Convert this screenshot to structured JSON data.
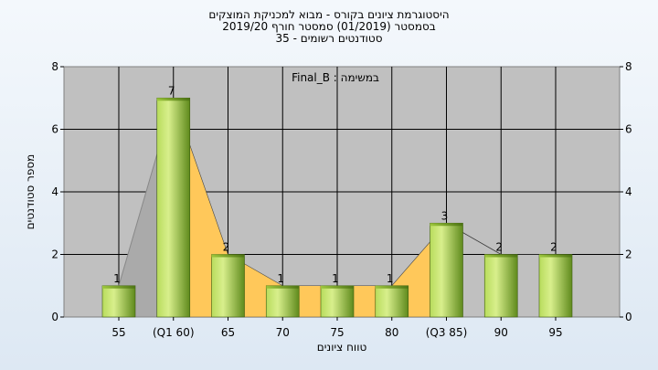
{
  "chart_data": {
    "type": "bar",
    "title_lines": [
      "היסטוגרמת ציונים בקורס - מבוא למכניקת המוצקים",
      "בסמסטר  (01/2019)  סמסטר חורף 2019/20",
      "סטודנטים רשומים - 35"
    ],
    "annotation": "במשימה : Final_B",
    "xlabel": "טווח ציונים",
    "ylabel": "מספר סטודנטים",
    "categories": [
      "55",
      "(Q1 60)",
      "65",
      "70",
      "75",
      "80",
      "(Q3 85)",
      "90",
      "95"
    ],
    "values": [
      1,
      7,
      2,
      1,
      1,
      1,
      3,
      2,
      2
    ],
    "ylim": [
      0,
      8
    ],
    "yticks": [
      0,
      2,
      4,
      6,
      8
    ],
    "grid": true,
    "colors": {
      "plot_bg": "#c0c0c0",
      "bar_light": "#d8ef8c",
      "bar_dark": "#5f8a1c",
      "iqr_area": "#ffc85a",
      "outer_area": "#aaaaaa"
    }
  }
}
